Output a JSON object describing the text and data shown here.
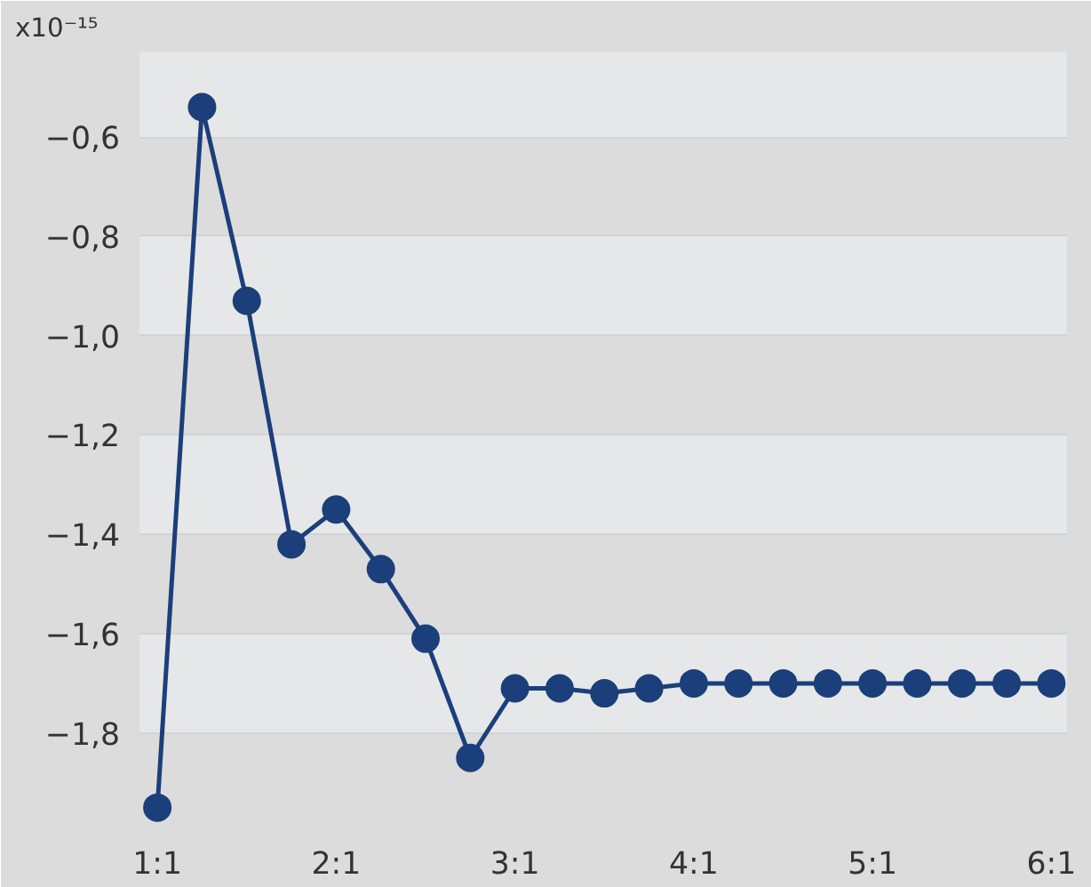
{
  "chart_data": {
    "type": "line",
    "ylabel": "x10⁻¹⁵",
    "categories": [
      "1:1",
      null,
      null,
      null,
      "2:1",
      null,
      null,
      null,
      "3:1",
      null,
      null,
      null,
      "4:1",
      null,
      null,
      null,
      "5:1",
      null,
      null,
      null,
      "6:1"
    ],
    "series": [
      {
        "color": "#1b3f7a",
        "values": [
          -1.95,
          -0.54,
          -0.93,
          -1.42,
          -1.35,
          -1.47,
          -1.61,
          -1.85,
          -1.71,
          -1.71,
          -1.72,
          -1.71,
          -1.7,
          -1.7,
          -1.7,
          -1.7,
          -1.7,
          -1.7,
          -1.7,
          -1.7,
          -1.7
        ]
      }
    ],
    "ylim": [
      -1.99,
      -0.43
    ],
    "yticks": [
      {
        "value": -1.8,
        "label": "−1,8"
      },
      {
        "value": -1.6,
        "label": "−1,6"
      },
      {
        "value": -1.4,
        "label": "−1,4"
      },
      {
        "value": -1.2,
        "label": "−1,2"
      },
      {
        "value": -1.0,
        "label": "−1,0"
      },
      {
        "value": -0.8,
        "label": "−0,8"
      },
      {
        "value": -0.6,
        "label": "−0,6"
      }
    ],
    "grid": "y",
    "marker": "circle",
    "line_style": "solid"
  }
}
